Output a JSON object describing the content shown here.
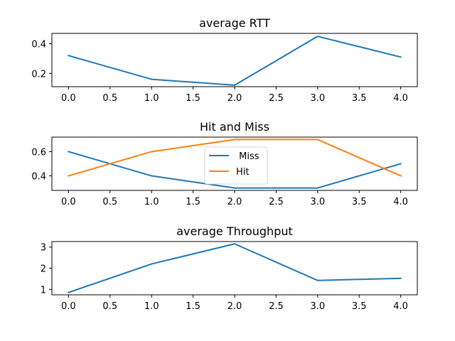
{
  "chart_data": [
    {
      "type": "line",
      "title": "average RTT",
      "xlabel": "",
      "ylabel": "",
      "x": [
        0,
        1,
        2,
        3,
        4
      ],
      "xticks": [
        0.0,
        0.5,
        1.0,
        1.5,
        2.0,
        2.5,
        3.0,
        3.5,
        4.0
      ],
      "xtick_labels": [
        "0.0",
        "0.5",
        "1.0",
        "1.5",
        "2.0",
        "2.5",
        "3.0",
        "3.5",
        "4.0"
      ],
      "xlim": [
        -0.2,
        4.2
      ],
      "yticks": [
        0.2,
        0.4
      ],
      "ytick_labels": [
        "0.2",
        "0.4"
      ],
      "ylim": [
        0.11,
        0.47
      ],
      "grid": false,
      "legend": null,
      "series": [
        {
          "values": [
            0.32,
            0.16,
            0.12,
            0.45,
            0.31
          ],
          "color": "#1f77b4"
        }
      ]
    },
    {
      "type": "line",
      "title": "Hit and Miss",
      "xlabel": "",
      "ylabel": "",
      "x": [
        0,
        1,
        2,
        3,
        4
      ],
      "xticks": [
        0.0,
        0.5,
        1.0,
        1.5,
        2.0,
        2.5,
        3.0,
        3.5,
        4.0
      ],
      "xtick_labels": [
        "0.0",
        "0.5",
        "1.0",
        "1.5",
        "2.0",
        "2.5",
        "3.0",
        "3.5",
        "4.0"
      ],
      "xlim": [
        -0.2,
        4.2
      ],
      "yticks": [
        0.4,
        0.6
      ],
      "ytick_labels": [
        "0.4",
        "0.6"
      ],
      "ylim": [
        0.28,
        0.72
      ],
      "grid": false,
      "legend": "center",
      "series": [
        {
          "name": " Miss",
          "values": [
            0.6,
            0.4,
            0.3,
            0.3,
            0.5
          ],
          "color": "#1f77b4"
        },
        {
          "name": "Hit",
          "values": [
            0.4,
            0.6,
            0.7,
            0.7,
            0.4
          ],
          "color": "#ff7f0e"
        }
      ]
    },
    {
      "type": "line",
      "title": "average Throughput",
      "xlabel": "",
      "ylabel": "",
      "x": [
        0,
        1,
        2,
        3,
        4
      ],
      "xticks": [
        0.0,
        0.5,
        1.0,
        1.5,
        2.0,
        2.5,
        3.0,
        3.5,
        4.0
      ],
      "xtick_labels": [
        "0.0",
        "0.5",
        "1.0",
        "1.5",
        "2.0",
        "2.5",
        "3.0",
        "3.5",
        "4.0"
      ],
      "xlim": [
        -0.2,
        4.2
      ],
      "yticks": [
        1,
        2,
        3
      ],
      "ytick_labels": [
        "1",
        "2",
        "3"
      ],
      "ylim": [
        0.74,
        3.26
      ],
      "grid": false,
      "legend": null,
      "series": [
        {
          "values": [
            0.85,
            2.2,
            3.15,
            1.42,
            1.52
          ],
          "color": "#1f77b4"
        }
      ]
    }
  ]
}
